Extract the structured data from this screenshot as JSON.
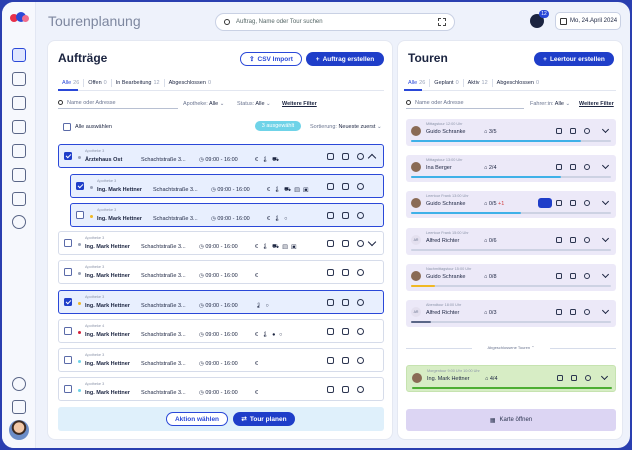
{
  "app": {
    "title": "Tourenplanung"
  },
  "header": {
    "search_placeholder": "Auftrag, Name oder Tour suchen",
    "chat_badge": "12",
    "date": "Mo, 24.April 2024"
  },
  "rail": {
    "icons": [
      "dashboard-icon",
      "route-icon",
      "box-icon",
      "truck-icon",
      "scan-icon",
      "report-icon",
      "chart-icon",
      "chat-icon",
      "settings-icon",
      "storage-icon"
    ]
  },
  "orders": {
    "title": "Aufträge",
    "csv_button": "CSV Import",
    "create_button": "Auftrag erstellen",
    "tabs": [
      {
        "label": "Alle",
        "count": "26"
      },
      {
        "label": "Offen",
        "count": "0"
      },
      {
        "label": "In Bearbeitung",
        "count": "12"
      },
      {
        "label": "Abgeschlossen",
        "count": "0"
      }
    ],
    "search_placeholder": "Name oder Adresse",
    "filter_pharmacy": {
      "label": "Apotheke:",
      "value": "Alle"
    },
    "filter_status": {
      "label": "Status:",
      "value": "Alle"
    },
    "more_filters": "Weitere Filter",
    "select_all": "Alle auswählen",
    "selected_pill": "3 ausgewählt",
    "sort": {
      "label": "Sortierung:",
      "value": "Neueste zuerst"
    },
    "rows": [
      {
        "sub": "Apotheke 3",
        "name": "Ärztehaus Ost",
        "addr": "Schachtstraße 3...",
        "time": "09:00 - 16:00",
        "icons": "€ 🌡 ⛟",
        "dot": "#9aa3b8",
        "checked": true,
        "selected": true,
        "expanded": true
      },
      {
        "sub": "Apotheke 3",
        "name": "Ing. Mark Hettner",
        "addr": "Schachtstraße 3...",
        "time": "09:00 - 16:00",
        "icons": "€ 🌡 ⛟ ▤ ▣",
        "dot": "#9aa3b8",
        "checked": true,
        "selected": true,
        "child": true
      },
      {
        "sub": "Apotheke 3",
        "name": "Ing. Mark Hettner",
        "addr": "Schachtstraße 3...",
        "time": "09:00 - 16:00",
        "icons": "€ 🌡 ○",
        "dot": "#f0b823",
        "checked": false,
        "selected": true,
        "child": true
      },
      {
        "sub": "Apotheke 3",
        "name": "Ing. Mark Hettner",
        "addr": "Schachtstraße 3...",
        "time": "09:00 - 16:00",
        "icons": "€ 🌡 ⛟ ▤ ▣",
        "dot": "#9aa3b8",
        "checked": false
      },
      {
        "sub": "Apotheke 3",
        "name": "Ing. Mark Hettner",
        "addr": "Schachtstraße 3...",
        "time": "09:00 - 16:00",
        "icons": "€",
        "dot": "#9aa3b8",
        "checked": false
      },
      {
        "sub": "Apotheke 3",
        "name": "Ing. Mark Hettner",
        "addr": "Schachtstraße 3...",
        "time": "09:00 - 16:00",
        "icons": "🌡 ○",
        "dot": "#f0b823",
        "checked": true,
        "selected": true
      },
      {
        "sub": "Apotheke 4",
        "name": "Ing. Mark Hettner",
        "addr": "Schachtstraße 3...",
        "time": "09:00 - 16:00",
        "icons": "€ 🌡 ● ○",
        "dot": "#d2203a",
        "checked": false
      },
      {
        "sub": "Apotheke 3",
        "name": "Ing. Mark Hettner",
        "addr": "Schachtstraße 3...",
        "time": "09:00 - 16:00",
        "icons": "€",
        "dot": "#6fd3e8",
        "checked": false
      },
      {
        "sub": "Apotheke 3",
        "name": "Ing. Mark Hettner",
        "addr": "Schachtstraße 3...",
        "time": "09:00 - 16:00",
        "icons": "€",
        "dot": "#6fd3e8",
        "checked": false
      }
    ],
    "action_button": "Aktion wählen",
    "plan_button": "Tour planen"
  },
  "tours": {
    "title": "Touren",
    "create_button": "Leertour erstellen",
    "tabs": [
      {
        "label": "Alle",
        "count": "26"
      },
      {
        "label": "Geplant",
        "count": "0"
      },
      {
        "label": "Aktiv",
        "count": "12"
      },
      {
        "label": "Abgeschlossen",
        "count": "0"
      }
    ],
    "search_placeholder": "Name oder Adresse",
    "filter_driver": {
      "label": "Fahrer:in:",
      "value": "Alle"
    },
    "more_filters": "Weitere Filter",
    "items": [
      {
        "sub": "Mittagstour 12:00 Uhr",
        "name": "Guido Schranke",
        "count": "3/5",
        "extra": "",
        "progress": 0.85,
        "color": "#3fb1e8",
        "initials": ""
      },
      {
        "sub": "Mittagstour 13:00 Uhr",
        "name": "Ina Berger",
        "count": "2/4",
        "extra": "",
        "progress": 0.75,
        "color": "#3fb1e8",
        "initials": ""
      },
      {
        "sub": "Leertour Frank 13:00 Uhr",
        "name": "Guido Schranke",
        "count": "0/5",
        "extra": "+1",
        "progress": 0.55,
        "color": "#3fb1e8",
        "initials": "",
        "sync": true
      },
      {
        "sub": "Leertour Frank 15:00 Uhr",
        "name": "Alfred Richter",
        "count": "0/6",
        "extra": "",
        "progress": 0,
        "color": "#3fb1e8",
        "initials": "AR"
      },
      {
        "sub": "Nachmittagstour 15:00 Uhr",
        "name": "Guido Schranke",
        "count": "0/8",
        "extra": "",
        "progress": 0.12,
        "color": "#f0b823",
        "initials": ""
      },
      {
        "sub": "Abendtour 18:00 Uhr",
        "name": "Alfred Richter",
        "count": "0/3",
        "extra": "",
        "progress": 0.1,
        "color": "#5a6687",
        "initials": "AR"
      }
    ],
    "completed_label": "Abgeschlossene Touren",
    "completed": {
      "sub": "Morgentour 9:00 Uhr 10:00 Uhr",
      "name": "Ing. Mark Hettner",
      "count": "4/4",
      "progress": 1,
      "color": "#4dae33"
    },
    "map_button": "Karte öffnen"
  }
}
